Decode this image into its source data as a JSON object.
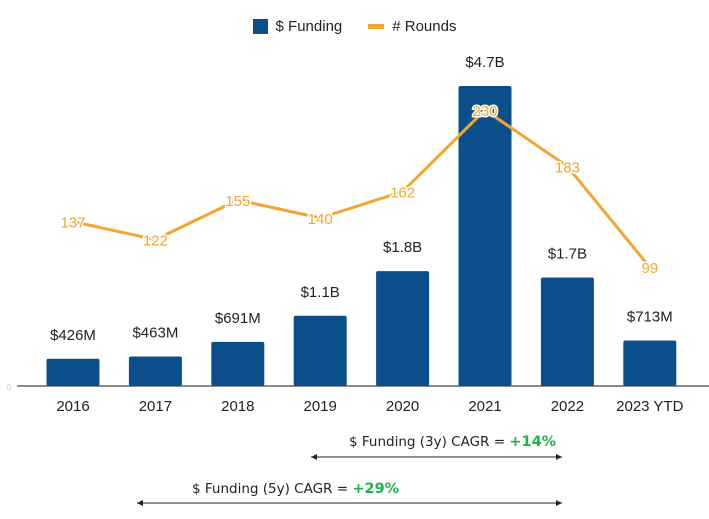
{
  "chart_data": {
    "type": "bar",
    "title": "",
    "xlabel": "",
    "ylabel": "",
    "categories": [
      "2016",
      "2017",
      "2018",
      "2019",
      "2020",
      "2021",
      "2022",
      "2023 YTD"
    ],
    "series": [
      {
        "name": "$ Funding",
        "type": "bar",
        "unit": "USD billions",
        "values": [
          0.426,
          0.463,
          0.691,
          1.1,
          1.8,
          4.7,
          1.7,
          0.713
        ],
        "labels": [
          "$426M",
          "$463M",
          "$691M",
          "$1.1B",
          "$1.8B",
          "$4.7B",
          "$1.7B",
          "$713M"
        ],
        "color": "#0b4f8a"
      },
      {
        "name": "# Rounds",
        "type": "line",
        "values": [
          137,
          122,
          155,
          140,
          162,
          230,
          183,
          99
        ],
        "color": "#f2a531"
      }
    ],
    "y_tick_labels": [
      "0"
    ],
    "ylim_funding": [
      0,
      4.7
    ],
    "legend_position": "top-center",
    "grid": false
  },
  "legend": [
    {
      "label": "$ Funding",
      "icon": "square-swatch"
    },
    {
      "label": "# Rounds",
      "icon": "line-swatch"
    }
  ],
  "annotations": [
    {
      "text": "$ Funding (3y) CAGR = ",
      "value": "+14%",
      "span": "2020–2022"
    },
    {
      "text": "$ Funding (5y) CAGR = ",
      "value": "+29%",
      "span": "2018–2022"
    }
  ],
  "colors": {
    "bar": "#0b4f8a",
    "line": "#f2a531",
    "cagr_value": "#1fb34a",
    "axis": "#444444"
  }
}
